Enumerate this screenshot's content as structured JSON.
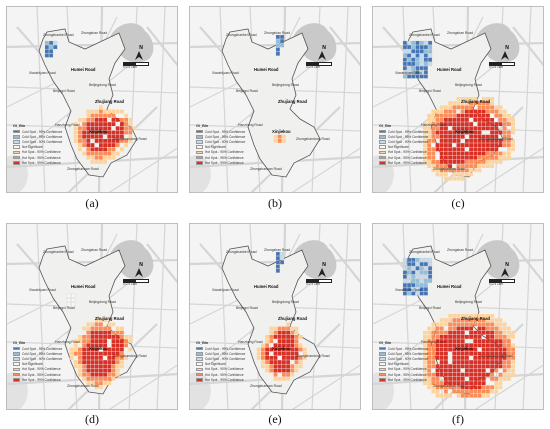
{
  "panels": [
    {
      "caption": "(a)",
      "id": "a",
      "hot": {
        "core": [
          [
            86,
            125
          ],
          [
            92,
            120
          ],
          [
            98,
            128
          ],
          [
            90,
            132
          ],
          [
            104,
            122
          ]
        ],
        "spread": 22,
        "intensity": 1
      },
      "cold": {
        "cells": 10,
        "region": "nw-small"
      }
    },
    {
      "caption": "(b)",
      "id": "b",
      "hot": {
        "core": [
          [
            88,
            130
          ]
        ],
        "spread": 6,
        "intensity": 0.4
      },
      "cold": {
        "cells": 8,
        "region": "ne-small"
      }
    },
    {
      "caption": "(c)",
      "id": "c",
      "hot": {
        "core": [
          [
            80,
            125
          ],
          [
            92,
            120
          ],
          [
            104,
            118
          ],
          [
            90,
            135
          ],
          [
            100,
            130
          ],
          [
            112,
            126
          ],
          [
            78,
            140
          ]
        ],
        "spread": 32,
        "intensity": 1
      },
      "cold": {
        "cells": 60,
        "region": "nw-large"
      }
    },
    {
      "caption": "(d)",
      "id": "d",
      "hot": {
        "core": [
          [
            92,
            115
          ],
          [
            84,
            128
          ],
          [
            96,
            128
          ],
          [
            90,
            140
          ],
          [
            102,
            120
          ]
        ],
        "spread": 22,
        "intensity": 1
      },
      "cold": {
        "cells": 6,
        "region": "none"
      }
    },
    {
      "caption": "(e)",
      "id": "e",
      "hot": {
        "core": [
          [
            92,
            115
          ],
          [
            84,
            128
          ],
          [
            96,
            128
          ],
          [
            90,
            138
          ]
        ],
        "spread": 18,
        "intensity": 1
      },
      "cold": {
        "cells": 8,
        "region": "ne-small"
      }
    },
    {
      "caption": "(f)",
      "id": "f",
      "hot": {
        "core": [
          [
            78,
            125
          ],
          [
            92,
            118
          ],
          [
            104,
            120
          ],
          [
            90,
            135
          ],
          [
            100,
            132
          ],
          [
            112,
            128
          ],
          [
            80,
            142
          ],
          [
            96,
            145
          ]
        ],
        "spread": 34,
        "intensity": 1
      },
      "cold": {
        "cells": 60,
        "region": "nw-large"
      }
    }
  ],
  "map": {
    "road_labels": {
      "humei": "Humei Road",
      "zhujiang": "Zhujiang Road",
      "xianjuan": "Xiaoshijuan Road",
      "beijingxi": "Beijingxi Road",
      "beijingdong": "Beijingdong Road",
      "zhongshan": "Zhongshan Road",
      "zhongshanbei": "Zhongshanbei Road",
      "xinjiekou": "Xinjiekou",
      "hanzhong": "Hanzhong Road",
      "zhongshandong": "Zhongshandong Road",
      "zhongshannan": "Zhongshannan Road",
      "jiefang": "Jiefang Road"
    },
    "north_label": "N",
    "scale_labels": [
      "0",
      "0.5",
      "1km"
    ]
  },
  "legend": {
    "title": "Gi_Bin",
    "entries": [
      {
        "label": "Cold Spot - 99% Confidence",
        "color": "#4575b4"
      },
      {
        "label": "Cold Spot - 95% Confidence",
        "color": "#91bfdb"
      },
      {
        "label": "Cold Spot - 90% Confidence",
        "color": "#c6dbef"
      },
      {
        "label": "Not Significant",
        "color": "#f7f7f7"
      },
      {
        "label": "Hot Spot - 90% Confidence",
        "color": "#fdd49e"
      },
      {
        "label": "Hot Spot - 95% Confidence",
        "color": "#fc8d59"
      },
      {
        "label": "Hot Spot - 99% Confidence",
        "color": "#d73027"
      }
    ]
  }
}
